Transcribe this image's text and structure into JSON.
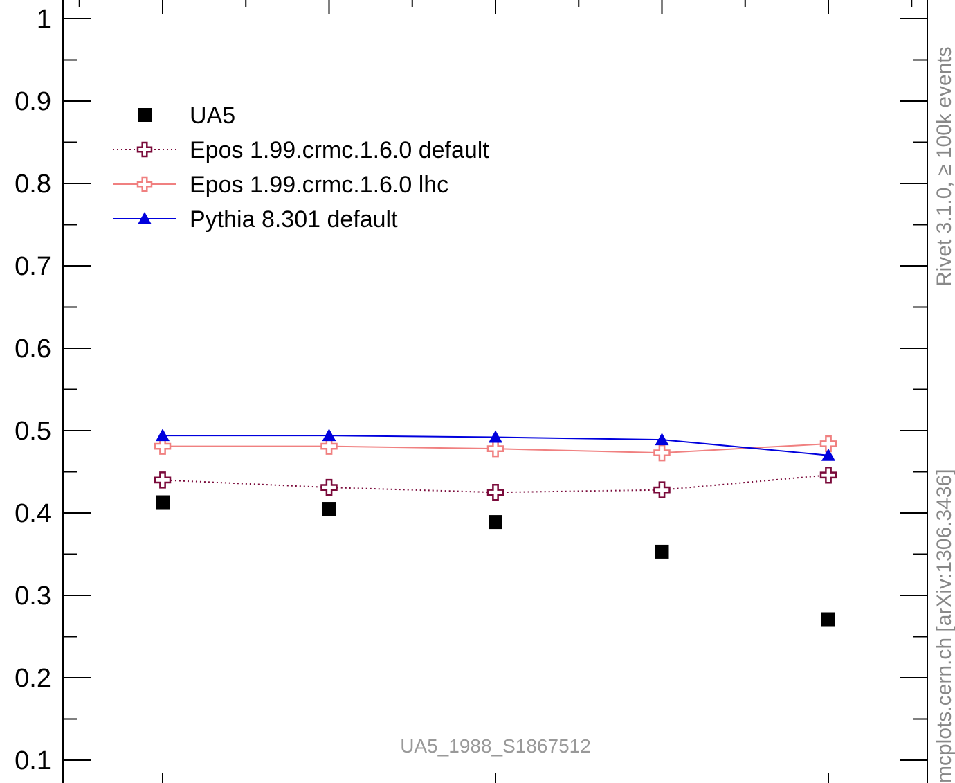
{
  "chart_data": {
    "type": "scatter",
    "x": [
      1,
      2,
      3,
      4,
      5
    ],
    "ylim": [
      0.08,
      1.02
    ],
    "yticks": [
      "1",
      "0.9",
      "0.8",
      "0.7",
      "0.6",
      "0.5",
      "0.4",
      "0.3",
      "0.2",
      "0.1"
    ],
    "series": [
      {
        "name": "UA5",
        "marker": "square",
        "line": "none",
        "color": "#000000",
        "values": [
          0.413,
          0.405,
          0.389,
          0.353,
          0.271
        ]
      },
      {
        "name": "Epos 1.99.crmc.1.6.0 default",
        "marker": "open-cross",
        "line": "dotted",
        "color": "#7a0a3a",
        "values": [
          0.44,
          0.431,
          0.425,
          0.428,
          0.446
        ]
      },
      {
        "name": "Epos 1.99.crmc.1.6.0 lhc",
        "marker": "open-cross",
        "line": "solid",
        "color": "#f08080",
        "values": [
          0.481,
          0.481,
          0.478,
          0.473,
          0.484
        ]
      },
      {
        "name": "Pythia 8.301 default",
        "marker": "triangle",
        "line": "solid",
        "color": "#0000dd",
        "values": [
          0.494,
          0.494,
          0.492,
          0.489,
          0.47
        ]
      }
    ],
    "legend_position": "top-left",
    "annotation": "UA5_1988_S1867512",
    "side_label_top": "Rivet 3.1.0, ≥ 100k events",
    "side_label_bottom": "mcplots.cern.ch [arXiv:1306.3436]"
  }
}
